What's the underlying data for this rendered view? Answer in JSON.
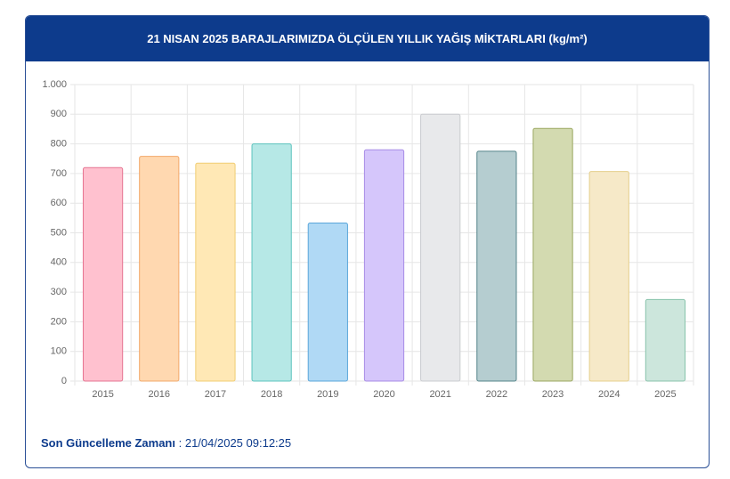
{
  "chart_data": {
    "type": "bar",
    "title": "21 NISAN 2025 BARAJLARIMIZDA ÖLÇÜLEN YILLIK YAĞIŞ MİKTARLARI (kg/m²)",
    "categories": [
      "2015",
      "2016",
      "2017",
      "2018",
      "2019",
      "2020",
      "2021",
      "2022",
      "2023",
      "2024",
      "2025"
    ],
    "values": [
      720,
      758,
      735,
      800,
      533,
      780,
      900,
      775,
      852,
      707,
      275
    ],
    "colors": [
      "#ffc1cf",
      "#ffd8b0",
      "#ffe8b5",
      "#b6e8e6",
      "#b0d9f5",
      "#d5c6fb",
      "#e8e9eb",
      "#b5cdd0",
      "#d3dab0",
      "#f6e9c8",
      "#cce6dc"
    ],
    "border_colors": [
      "#e57390",
      "#f2a86a",
      "#f0cd72",
      "#5cc3be",
      "#5aa6da",
      "#a78be6",
      "#c9cbcf",
      "#55848a",
      "#9aa760",
      "#e5cf8c",
      "#88c3ab"
    ],
    "ylim": [
      0,
      1000
    ],
    "yticks": [
      0,
      100,
      200,
      300,
      400,
      500,
      600,
      700,
      800,
      900,
      {
        "value": 1000,
        "label": "1.000"
      }
    ],
    "grid": true
  },
  "footer": {
    "label": "Son Güncelleme Zamanı",
    "value": ": 21/04/2025 09:12:25"
  }
}
